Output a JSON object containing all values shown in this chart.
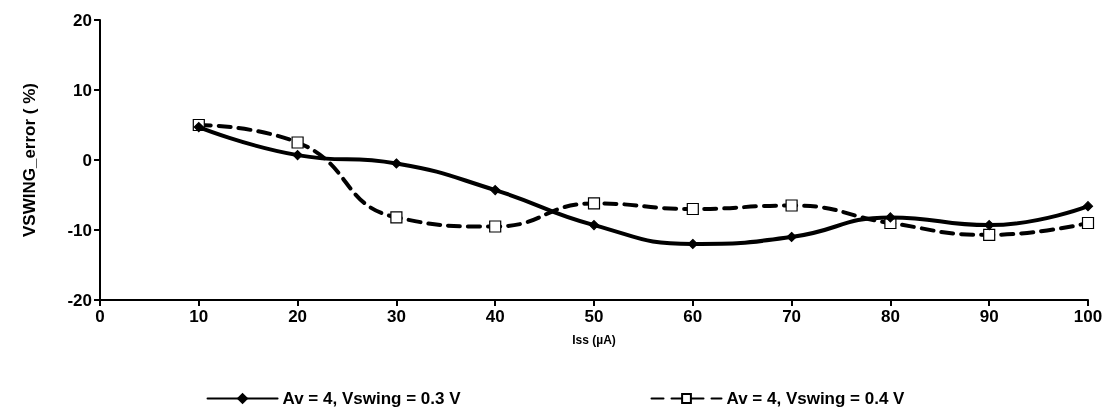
{
  "chart_data": {
    "type": "line",
    "xlabel": "Iss (µA)",
    "ylabel": "VSWING_error ( %)",
    "x": [
      10,
      20,
      30,
      40,
      50,
      60,
      70,
      80,
      90,
      100
    ],
    "series": [
      {
        "name": "Av = 4, Vswing = 0.3 V",
        "color": "#000000",
        "marker": "diamond",
        "line_style": "solid",
        "values": [
          4.7,
          0.7,
          -0.5,
          -4.3,
          -9.3,
          -12,
          -11,
          -8.2,
          -9.3,
          -6.6
        ]
      },
      {
        "name": "Av = 4, Vswing = 0.4 V",
        "color": "#000000",
        "marker": "square",
        "line_style": "dashed",
        "values": [
          5,
          2.5,
          -8.2,
          -9.5,
          -6.2,
          -7,
          -6.5,
          -9,
          -10.7,
          -9
        ]
      }
    ],
    "xlim": [
      0,
      100
    ],
    "xticks": [
      0,
      10,
      20,
      30,
      40,
      50,
      60,
      70,
      80,
      90,
      100
    ],
    "ylim": [
      -20,
      20
    ],
    "yticks": [
      -20,
      -10,
      0,
      10,
      20
    ],
    "grid": false,
    "legend": "bottom"
  }
}
